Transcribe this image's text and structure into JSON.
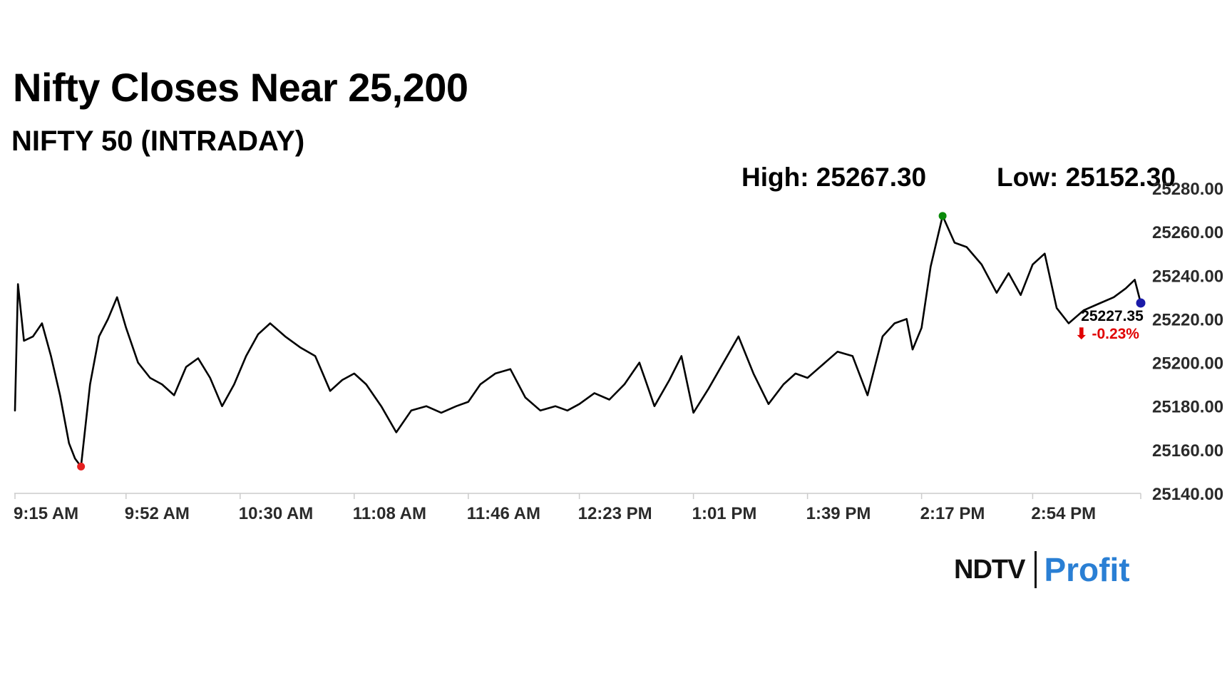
{
  "header": {
    "title": "Nifty Closes Near 25,200",
    "subtitle": "NIFTY 50 (INTRADAY)"
  },
  "stats": {
    "high_label": "High: 25267.30",
    "low_label": "Low: 25152.30"
  },
  "branding": {
    "brand": "NDTV",
    "product": "Profit",
    "colors": {
      "ndtv": "#111111",
      "ndtv_dot": "#e0262a",
      "profit_start": "#1e88e5",
      "profit_end": "#e83e8c"
    }
  },
  "chart_data": {
    "type": "line",
    "title": "Nifty Closes Near 25,200",
    "subtitle": "NIFTY 50 (INTRADAY)",
    "xlabel": "",
    "ylabel": "",
    "grid": false,
    "x_ticks": [
      "9:15 AM",
      "9:52 AM",
      "10:30 AM",
      "11:08 AM",
      "11:46 AM",
      "12:23 PM",
      "1:01 PM",
      "1:39 PM",
      "2:17 PM",
      "2:54 PM"
    ],
    "x_range": [
      "9:15 AM",
      "3:30 PM"
    ],
    "y_ticks": [
      25140,
      25160,
      25180,
      25200,
      25220,
      25240,
      25260,
      25280
    ],
    "y_tick_labels": [
      "25140.00",
      "25160.00",
      "25180.00",
      "25200.00",
      "25220.00",
      "25240.00",
      "25260.00",
      "25280.00"
    ],
    "ylim": [
      25140,
      25280
    ],
    "high": 25267.3,
    "low": 25152.3,
    "last_value_label": "25227.35",
    "change_label": "-0.23%",
    "change_arrow": "⬇",
    "colors": {
      "line": "#000000",
      "high_marker": "#0a8a0a",
      "low_marker": "#e52020",
      "last_marker": "#1a1aa8",
      "change_text": "#e00000",
      "axis": "#cccccc"
    },
    "series": [
      {
        "x": [
          "9:15 AM",
          "9:16 AM",
          "9:18 AM",
          "9:21 AM",
          "9:24 AM",
          "9:27 AM",
          "9:30 AM",
          "9:33 AM",
          "9:35 AM",
          "9:37 AM",
          "9:40 AM",
          "9:43 AM",
          "9:46 AM",
          "9:49 AM",
          "9:52 AM",
          "9:56 AM",
          "10:00 AM",
          "10:04 AM",
          "10:08 AM",
          "10:12 AM",
          "10:16 AM",
          "10:20 AM",
          "10:24 AM",
          "10:28 AM",
          "10:32 AM",
          "10:36 AM",
          "10:40 AM",
          "10:45 AM",
          "10:50 AM",
          "10:55 AM",
          "11:00 AM",
          "11:04 AM",
          "11:08 AM",
          "11:12 AM",
          "11:17 AM",
          "11:22 AM",
          "11:27 AM",
          "11:32 AM",
          "11:37 AM",
          "11:42 AM",
          "11:46 AM",
          "11:50 AM",
          "11:55 AM",
          "12:00 PM",
          "12:05 PM",
          "12:10 PM",
          "12:15 PM",
          "12:19 PM",
          "12:23 PM",
          "12:28 PM",
          "12:33 PM",
          "12:38 PM",
          "12:43 PM",
          "12:48 PM",
          "12:53 PM",
          "12:57 PM",
          "1:01 PM",
          "1:06 PM",
          "1:11 PM",
          "1:16 PM",
          "1:21 PM",
          "1:26 PM",
          "1:31 PM",
          "1:35 PM",
          "1:39 PM",
          "1:44 PM",
          "1:49 PM",
          "1:54 PM",
          "1:59 PM",
          "2:04 PM",
          "2:08 PM",
          "2:12 PM",
          "2:14 PM",
          "2:17 PM",
          "2:20 PM",
          "2:24 PM",
          "2:28 PM",
          "2:32 PM",
          "2:37 PM",
          "2:42 PM",
          "2:46 PM",
          "2:50 PM",
          "2:54 PM",
          "2:58 PM",
          "3:02 PM",
          "3:06 PM",
          "3:11 PM",
          "3:16 PM",
          "3:21 PM",
          "3:25 PM",
          "3:28 PM",
          "3:30 PM"
        ],
        "values": [
          25178,
          25236,
          25210,
          25212,
          25218,
          25203,
          25185,
          25163,
          25156,
          25152.3,
          25190,
          25212,
          25220,
          25230,
          25216,
          25200,
          25193,
          25190,
          25185,
          25198,
          25202,
          25193,
          25180,
          25190,
          25203,
          25213,
          25218,
          25212,
          25207,
          25203,
          25187,
          25192,
          25195,
          25190,
          25180,
          25168,
          25178,
          25180,
          25177,
          25180,
          25182,
          25190,
          25195,
          25197,
          25184,
          25178,
          25180,
          25178,
          25181,
          25186,
          25183,
          25190,
          25200,
          25180,
          25192,
          25203,
          25177,
          25188,
          25200,
          25212,
          25195,
          25181,
          25190,
          25195,
          25193,
          25199,
          25205,
          25203,
          25185,
          25212,
          25218,
          25220,
          25206,
          25216,
          25244,
          25267.3,
          25255,
          25253,
          25245,
          25232,
          25241,
          25231,
          25245,
          25250,
          25225,
          25218,
          25224,
          25227,
          25230,
          25234,
          25238,
          25227.35
        ]
      }
    ]
  }
}
